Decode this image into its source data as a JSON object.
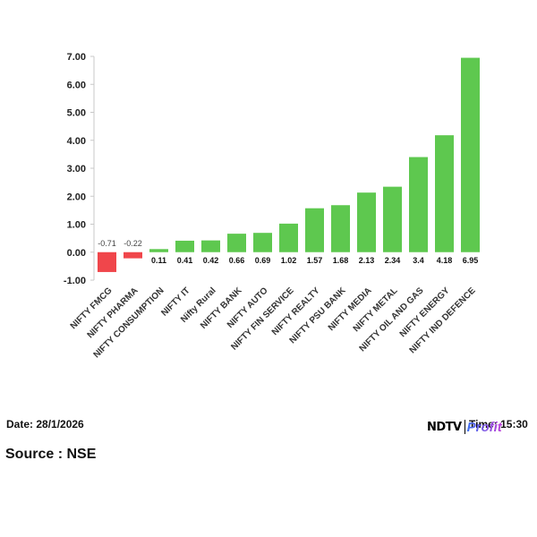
{
  "chart_data": {
    "type": "bar",
    "categories": [
      "NIFTY FMCG",
      "NIFTY PHARMA",
      "NIFTY CONSUMPTION",
      "NIFTY IT",
      "Nifty Rural",
      "NIFTY BANK",
      "NIFTY AUTO",
      "NIFTY FIN SERVICE",
      "NIFTY REALTY",
      "NIFTY PSU BANK",
      "NIFTY MEDIA",
      "NIFTY METAL",
      "NIFTY OIL AND GAS",
      "NIFTY ENERGY",
      "NIFTY IND DEFENCE"
    ],
    "values": [
      -0.71,
      -0.22,
      0.11,
      0.41,
      0.42,
      0.66,
      0.69,
      1.02,
      1.57,
      1.68,
      2.13,
      2.34,
      3.4,
      4.18,
      6.95
    ],
    "value_labels": [
      "-0.71",
      "-0.22",
      "0.11",
      "0.41",
      "0.42",
      "0.66",
      "0.69",
      "1.02",
      "1.57",
      "1.68",
      "2.13",
      "2.34",
      "3.4",
      "4.18",
      "6.95"
    ],
    "yticks": [
      "-1.00",
      "0.00",
      "1.00",
      "2.00",
      "3.00",
      "4.00",
      "5.00",
      "6.00",
      "7.00"
    ],
    "ylim": [
      -1,
      7
    ],
    "grid": false,
    "colors": {
      "positive": "#5ec84f",
      "negative": "#f0464b",
      "axis": "#c8c8c8",
      "negative_label": "#444444"
    },
    "title": "",
    "xlabel": "",
    "ylabel": ""
  },
  "footer": {
    "date": "Date: 28/1/2026",
    "time": "Time: 15:30",
    "source": "Source : NSE",
    "brand_primary": "NDTV",
    "brand_secondary": "Profit"
  }
}
